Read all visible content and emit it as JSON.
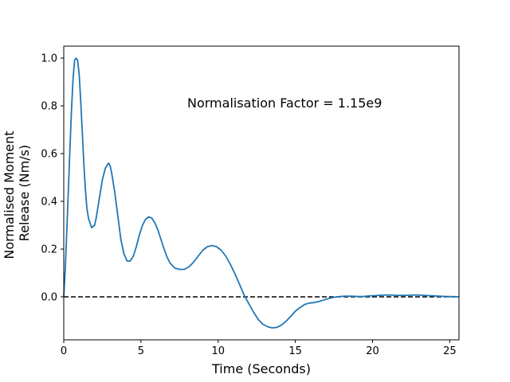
{
  "chart_data": {
    "type": "line",
    "title": "",
    "xlabel": "Time (Seconds)",
    "ylabel_lines": [
      "Normalised Moment",
      "Release (Nm/s)"
    ],
    "xlim": [
      0,
      25.6
    ],
    "ylim": [
      -0.18,
      1.05
    ],
    "x_ticks": [
      0,
      5,
      10,
      15,
      20,
      25
    ],
    "y_ticks": [
      0.0,
      0.2,
      0.4,
      0.6,
      0.8,
      1.0
    ],
    "x_tick_labels": [
      "0",
      "5",
      "10",
      "15",
      "20",
      "25"
    ],
    "y_tick_labels": [
      "0.0",
      "0.2",
      "0.4",
      "0.6",
      "0.8",
      "1.0"
    ],
    "annotation": {
      "text": "Normalisation Factor = 1.15e9",
      "x": 8.0,
      "y": 0.81
    },
    "reference_line": {
      "y": 0.0,
      "style": "dashed",
      "color": "#000000"
    },
    "series": [
      {
        "color": "#1f77b4",
        "x": [
          0,
          0.1,
          0.2,
          0.3,
          0.4,
          0.5,
          0.6,
          0.7,
          0.8,
          0.9,
          1.0,
          1.1,
          1.2,
          1.3,
          1.4,
          1.5,
          1.6,
          1.8,
          2.0,
          2.1,
          2.3,
          2.5,
          2.7,
          2.9,
          3.0,
          3.1,
          3.3,
          3.5,
          3.7,
          3.9,
          4.1,
          4.3,
          4.5,
          4.7,
          4.9,
          5.1,
          5.3,
          5.5,
          5.7,
          5.9,
          6.1,
          6.3,
          6.5,
          6.7,
          6.9,
          7.2,
          7.5,
          7.8,
          8.1,
          8.4,
          8.7,
          9.0,
          9.3,
          9.6,
          9.9,
          10.2,
          10.5,
          10.8,
          11.1,
          11.4,
          11.7,
          12.0,
          12.3,
          12.6,
          12.9,
          13.2,
          13.5,
          13.8,
          14.1,
          14.4,
          14.7,
          15.0,
          15.3,
          15.6,
          15.9,
          16.2,
          16.5,
          16.8,
          17.1,
          17.4,
          17.7,
          18.0,
          18.3,
          18.6,
          18.9,
          19.2,
          19.5,
          19.8,
          20.1,
          20.4,
          20.7,
          21.0,
          21.3,
          21.6,
          21.9,
          22.2,
          22.5,
          22.8,
          23.1,
          23.4,
          23.7,
          24.0,
          24.3,
          24.6,
          24.9,
          25.2,
          25.6
        ],
        "y": [
          0.0,
          0.12,
          0.28,
          0.45,
          0.62,
          0.78,
          0.91,
          0.99,
          1.0,
          0.99,
          0.93,
          0.82,
          0.69,
          0.56,
          0.45,
          0.37,
          0.33,
          0.29,
          0.3,
          0.33,
          0.41,
          0.49,
          0.54,
          0.56,
          0.55,
          0.52,
          0.44,
          0.34,
          0.24,
          0.18,
          0.15,
          0.15,
          0.17,
          0.21,
          0.26,
          0.3,
          0.325,
          0.335,
          0.33,
          0.31,
          0.28,
          0.24,
          0.2,
          0.165,
          0.14,
          0.12,
          0.115,
          0.115,
          0.125,
          0.145,
          0.17,
          0.195,
          0.21,
          0.215,
          0.21,
          0.195,
          0.17,
          0.135,
          0.095,
          0.05,
          0.005,
          -0.03,
          -0.065,
          -0.095,
          -0.115,
          -0.125,
          -0.13,
          -0.128,
          -0.118,
          -0.102,
          -0.082,
          -0.06,
          -0.045,
          -0.032,
          -0.026,
          -0.024,
          -0.02,
          -0.014,
          -0.008,
          -0.003,
          0.0,
          0.002,
          0.003,
          0.003,
          0.002,
          0.001,
          0.002,
          0.004,
          0.005,
          0.006,
          0.007,
          0.008,
          0.007,
          0.006,
          0.006,
          0.006,
          0.007,
          0.008,
          0.007,
          0.006,
          0.005,
          0.004,
          0.003,
          0.002,
          0.001,
          0.001,
          0.0
        ]
      }
    ]
  }
}
